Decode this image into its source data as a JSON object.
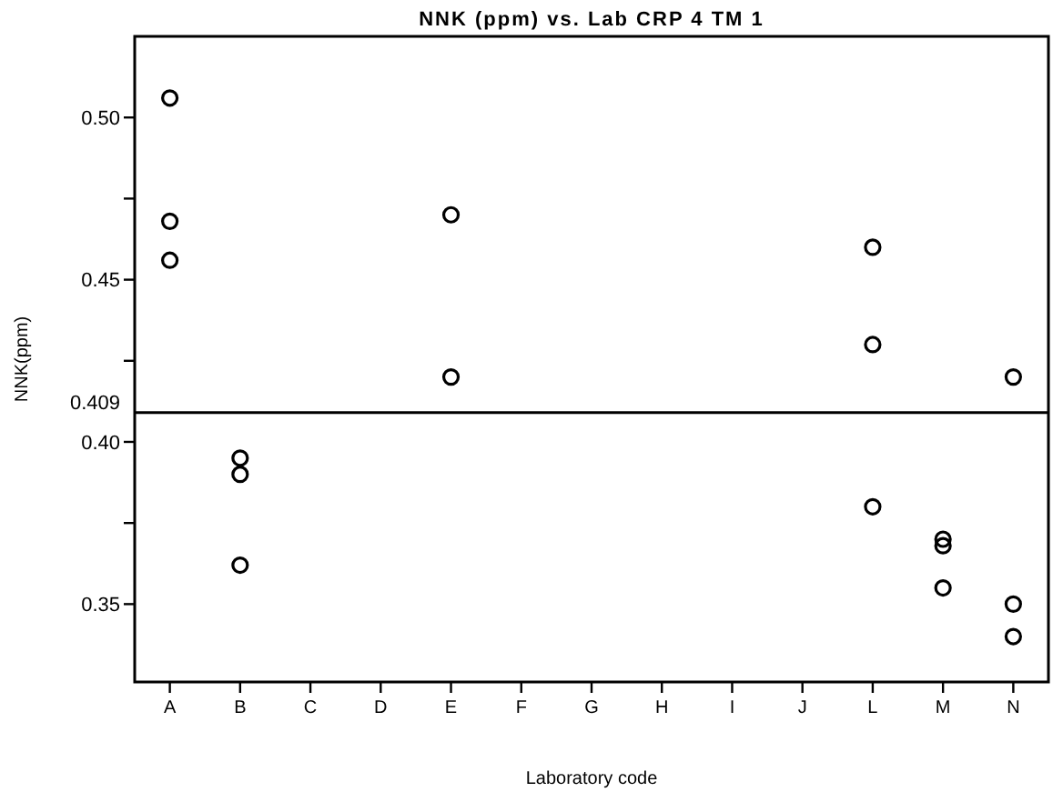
{
  "chart_data": {
    "type": "scatter",
    "title": "NNK (ppm) vs. Lab CRP 4 TM 1",
    "xlabel": "Laboratory code",
    "ylabel": "NNK(ppm)",
    "categories": [
      "A",
      "B",
      "C",
      "D",
      "E",
      "F",
      "G",
      "H",
      "I",
      "J",
      "L",
      "M",
      "N"
    ],
    "series": [
      {
        "color": "#000000",
        "x": [
          "A",
          "A",
          "A",
          "B",
          "B",
          "B",
          "E",
          "E",
          "L",
          "L",
          "L",
          "M",
          "M",
          "M",
          "N",
          "N",
          "N"
        ],
        "values": [
          0.506,
          0.468,
          0.456,
          0.395,
          0.39,
          0.362,
          0.47,
          0.42,
          0.46,
          0.43,
          0.38,
          0.37,
          0.368,
          0.355,
          0.42,
          0.35,
          0.34
        ]
      }
    ],
    "ylim": [
      0.326,
      0.525
    ],
    "yticks": [
      {
        "value": 0.35,
        "label": "0.35"
      },
      {
        "value": 0.375,
        "label": null
      },
      {
        "value": 0.4,
        "label": "0.40"
      },
      {
        "value": 0.425,
        "label": null
      },
      {
        "value": 0.45,
        "label": "0.45"
      },
      {
        "value": 0.475,
        "label": null
      },
      {
        "value": 0.5,
        "label": "0.50"
      }
    ],
    "ref_lines": [
      {
        "axis": "y",
        "value": 0.409,
        "label": "0.409",
        "color": "#000000"
      }
    ],
    "grid": false,
    "marker": "circle"
  }
}
